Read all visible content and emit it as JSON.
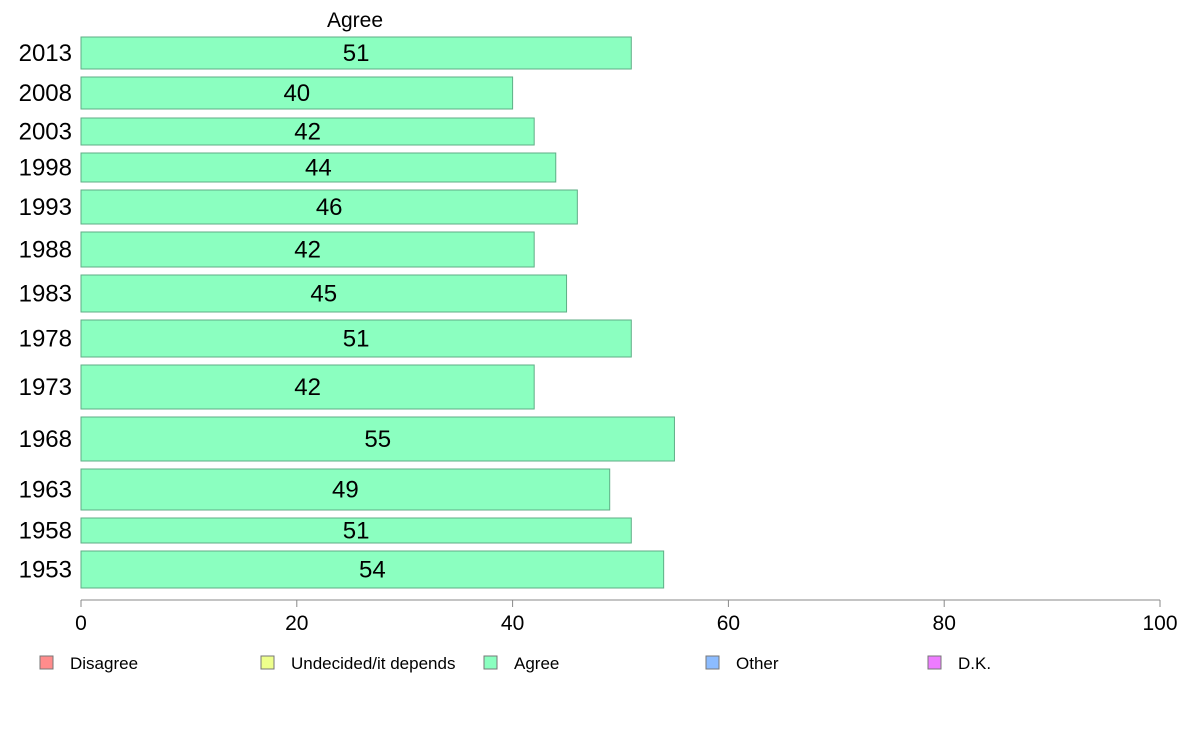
{
  "chart_data": {
    "type": "bar",
    "orientation": "horizontal",
    "title": "Agree",
    "xlim": [
      0,
      100
    ],
    "x_ticks": [
      "0",
      "20",
      "40",
      "60",
      "80",
      "100"
    ],
    "categories": [
      "2013",
      "2008",
      "2003",
      "1998",
      "1993",
      "1988",
      "1983",
      "1978",
      "1973",
      "1968",
      "1963",
      "1958",
      "1953"
    ],
    "series": [
      {
        "name": "Agree",
        "color": "#8bffc0",
        "values": [
          51,
          40,
          42,
          44,
          46,
          42,
          45,
          51,
          42,
          55,
          49,
          51,
          54
        ],
        "labels": [
          "51",
          "40",
          "42",
          "44",
          "46",
          "42",
          "45",
          "51",
          "42",
          "55",
          "49",
          "51",
          "54"
        ]
      }
    ],
    "legend": {
      "placement": "bottom",
      "items": [
        {
          "label": "Disagree",
          "color": "#ff8c8c"
        },
        {
          "label": "Undecided/it depends",
          "color": "#eeff8c"
        },
        {
          "label": "Agree",
          "color": "#8bffc0"
        },
        {
          "label": "Other",
          "color": "#8cbcff"
        },
        {
          "label": "D.K.",
          "color": "#ee7cff"
        }
      ]
    }
  }
}
